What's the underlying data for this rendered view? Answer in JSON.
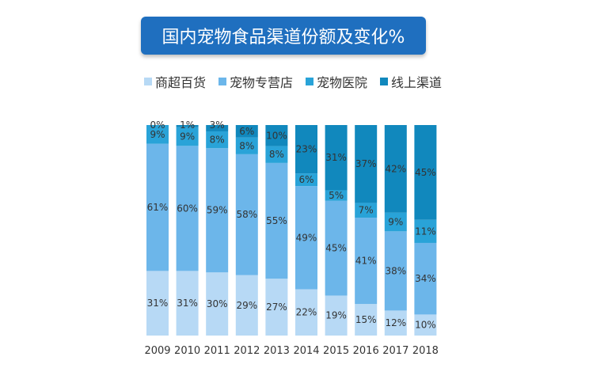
{
  "chart_data": {
    "type": "bar",
    "stacked": true,
    "title": "国内宠物食品渠道份额及变化%",
    "categories": [
      "2009",
      "2010",
      "2011",
      "2012",
      "2013",
      "2014",
      "2015",
      "2016",
      "2017",
      "2018"
    ],
    "series": [
      {
        "name": "商超百货",
        "color": "#b7d9f5",
        "values": [
          31,
          31,
          30,
          29,
          27,
          22,
          19,
          15,
          12,
          10
        ]
      },
      {
        "name": "宠物专营店",
        "color": "#6cb6ea",
        "values": [
          61,
          60,
          59,
          58,
          55,
          49,
          45,
          41,
          38,
          34
        ]
      },
      {
        "name": "宠物医院",
        "color": "#29a3d8",
        "values": [
          9,
          9,
          8,
          8,
          8,
          6,
          5,
          7,
          9,
          11
        ]
      },
      {
        "name": "线上渠道",
        "color": "#1188bd",
        "values": [
          0,
          1,
          3,
          6,
          10,
          23,
          31,
          37,
          42,
          45
        ]
      }
    ],
    "top_labels": [
      "0%",
      "1%",
      "3%",
      "6%",
      "10%",
      "23%",
      "31%",
      "37%",
      "42%",
      "45%"
    ],
    "legend_position": "top",
    "grid": false,
    "ylim": [
      0,
      100
    ]
  }
}
